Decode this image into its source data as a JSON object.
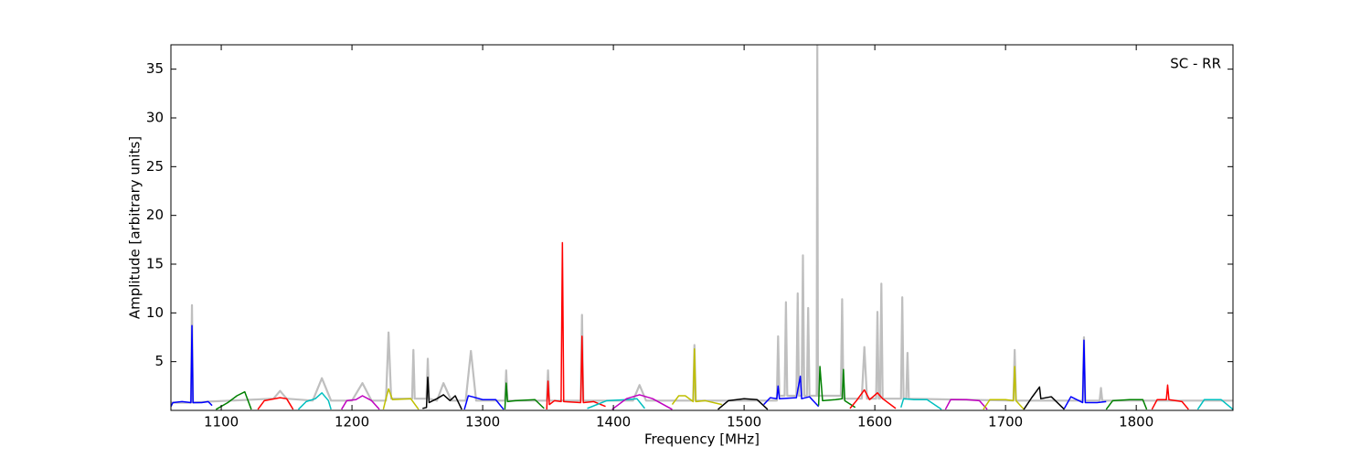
{
  "chart_data": {
    "type": "line",
    "xlabel": "Frequency [MHz]",
    "ylabel": "Amplitude [arbitrary units]",
    "annotation": "SC - RR",
    "xlim": [
      1061.5,
      1874
    ],
    "ylim": [
      0,
      37.5
    ],
    "xticks": [
      1100,
      1200,
      1300,
      1400,
      1500,
      1600,
      1700,
      1800
    ],
    "yticks": [
      5,
      10,
      15,
      20,
      25,
      30,
      35
    ],
    "series": [
      {
        "color": "#bfbfbf",
        "x": [
          1061.5,
          1076.8,
          1077.6,
          1078.4,
          1090,
          1140,
          1145,
          1150,
          1170,
          1177,
          1184,
          1200,
          1208,
          1215,
          1226,
          1228,
          1230,
          1246,
          1247,
          1248,
          1257,
          1258,
          1259,
          1265,
          1270,
          1276,
          1287,
          1291,
          1295,
          1317,
          1318,
          1319,
          1349,
          1350,
          1351,
          1375,
          1376,
          1377,
          1415,
          1420,
          1425,
          1461,
          1462,
          1463,
          1525,
          1526,
          1527,
          1531,
          1532,
          1533,
          1540,
          1541,
          1542,
          1544,
          1545,
          1546,
          1548,
          1549,
          1550,
          1555.5,
          1556,
          1556.5,
          1574,
          1575,
          1576,
          1590,
          1592,
          1594,
          1601,
          1602,
          1603,
          1604,
          1605,
          1606,
          1620,
          1621,
          1622,
          1624,
          1625,
          1626,
          1706,
          1707,
          1708,
          1759,
          1760,
          1761,
          1772,
          1773,
          1774,
          1874
        ],
        "values": [
          0.8,
          0.8,
          10.8,
          0.8,
          0.9,
          1.2,
          2,
          1.2,
          1,
          3.3,
          1,
          1,
          2.8,
          1,
          1,
          8,
          1.2,
          1.2,
          6.2,
          1.2,
          1.2,
          5.3,
          1.2,
          1,
          2.8,
          1,
          1,
          6.1,
          1,
          1,
          4.1,
          1,
          1,
          4.1,
          1,
          1,
          9.8,
          1,
          1,
          2.6,
          1,
          1,
          6.7,
          1,
          1,
          7.6,
          1.5,
          1.5,
          11.1,
          1.5,
          1.5,
          12,
          1.5,
          1.5,
          15.9,
          1.5,
          1.5,
          10.5,
          1.5,
          1.5,
          37.5,
          1.5,
          1.5,
          11.4,
          1.2,
          1.2,
          6.5,
          1.2,
          1.2,
          10.1,
          1.2,
          1.2,
          13,
          1.2,
          1.2,
          11.6,
          1.2,
          1.2,
          5.9,
          1.2,
          1,
          6.2,
          1,
          1,
          7.5,
          1,
          1,
          2.3,
          1,
          1
        ]
      },
      {
        "color": "#0000ff",
        "x": [
          1061.5,
          1063,
          1070,
          1076.8,
          1077.6,
          1078.4,
          1085,
          1090,
          1093
        ],
        "values": [
          0.4,
          0.8,
          0.9,
          0.8,
          8.7,
          0.8,
          0.8,
          0.9,
          0.5
        ]
      },
      {
        "color": "#008000",
        "x": [
          1096,
          1105,
          1112,
          1118,
          1123
        ],
        "values": [
          0.1,
          0.8,
          1.5,
          1.9,
          0.1
        ]
      },
      {
        "color": "#ff0000",
        "x": [
          1128,
          1133,
          1145,
          1150,
          1155
        ],
        "values": [
          0.1,
          1.0,
          1.3,
          1.2,
          0.1
        ]
      },
      {
        "color": "#00bfbf",
        "x": [
          1159,
          1165,
          1172,
          1177,
          1182,
          1184
        ],
        "values": [
          0.1,
          0.9,
          1.2,
          1.8,
          1.0,
          0.1
        ]
      },
      {
        "color": "#bf00bf",
        "x": [
          1192,
          1196,
          1203,
          1208,
          1215,
          1221
        ],
        "values": [
          0.1,
          1.0,
          1.1,
          1.5,
          1.0,
          0.1
        ]
      },
      {
        "color": "#bfbf00",
        "x": [
          1224,
          1226,
          1228,
          1231,
          1245,
          1251
        ],
        "values": [
          0.1,
          1.2,
          2.2,
          1.1,
          1.2,
          0.1
        ]
      },
      {
        "color": "#000000",
        "x": [
          1254,
          1257,
          1258,
          1259,
          1265,
          1270,
          1275,
          1279,
          1284
        ],
        "values": [
          0.2,
          0.3,
          3.4,
          0.8,
          1.2,
          1.6,
          1.0,
          1.5,
          0.1
        ]
      },
      {
        "color": "#0000ff",
        "x": [
          1286,
          1289,
          1292,
          1300,
          1310,
          1316
        ],
        "values": [
          0.1,
          1.5,
          1.4,
          1.1,
          1.1,
          0.1
        ]
      },
      {
        "color": "#008000",
        "x": [
          1317,
          1318,
          1319,
          1325,
          1340,
          1347
        ],
        "values": [
          0.1,
          2.8,
          0.9,
          1.0,
          1.1,
          0.2
        ]
      },
      {
        "color": "#ff0000",
        "x": [
          1349,
          1350,
          1351,
          1355,
          1360,
          1361,
          1362,
          1375,
          1376,
          1377,
          1385,
          1394
        ],
        "values": [
          0.1,
          3.0,
          0.6,
          1.0,
          0.9,
          17.2,
          0.9,
          0.8,
          7.6,
          0.8,
          0.9,
          0.4
        ]
      },
      {
        "color": "#00bfbf",
        "x": [
          1380,
          1395,
          1410,
          1418,
          1424
        ],
        "values": [
          0.2,
          1.0,
          1.1,
          1.2,
          0.2
        ]
      },
      {
        "color": "#bf00bf",
        "x": [
          1399,
          1410,
          1420,
          1430,
          1445
        ],
        "values": [
          0.1,
          1.2,
          1.6,
          1.2,
          0.1
        ]
      },
      {
        "color": "#bfbf00",
        "x": [
          1445,
          1450,
          1455,
          1461,
          1462,
          1463,
          1470,
          1483
        ],
        "values": [
          0.6,
          1.5,
          1.5,
          0.9,
          6.3,
          0.9,
          1.0,
          0.6
        ]
      },
      {
        "color": "#000000",
        "x": [
          1480,
          1488,
          1500,
          1510,
          1518
        ],
        "values": [
          0.1,
          1.0,
          1.2,
          1.1,
          0.1
        ]
      },
      {
        "color": "#0000ff",
        "x": [
          1515,
          1520,
          1525,
          1526,
          1527,
          1540,
          1543,
          1544,
          1550,
          1557
        ],
        "values": [
          0.6,
          1.3,
          1.2,
          2.5,
          1.2,
          1.3,
          3.5,
          1.2,
          1.4,
          0.4
        ]
      },
      {
        "color": "#008000",
        "x": [
          1557,
          1558,
          1560,
          1570,
          1575,
          1576,
          1577,
          1585
        ],
        "values": [
          0.5,
          4.5,
          1.0,
          1.1,
          1.2,
          4.2,
          1.0,
          0.3
        ]
      },
      {
        "color": "#ff0000",
        "x": [
          1581,
          1586,
          1592,
          1596,
          1602,
          1606,
          1616
        ],
        "values": [
          0.2,
          1.0,
          2.1,
          1.1,
          1.8,
          1.2,
          0.2
        ]
      },
      {
        "color": "#00bfbf",
        "x": [
          1620,
          1622,
          1630,
          1640,
          1651
        ],
        "values": [
          0.3,
          1.2,
          1.1,
          1.1,
          0.1
        ]
      },
      {
        "color": "#bf00bf",
        "x": [
          1654,
          1658,
          1670,
          1680,
          1686
        ],
        "values": [
          0.1,
          1.1,
          1.1,
          1.0,
          0.1
        ]
      },
      {
        "color": "#bfbf00",
        "x": [
          1683,
          1688,
          1700,
          1706,
          1707,
          1708,
          1714
        ],
        "values": [
          0.1,
          1.1,
          1.1,
          1.0,
          4.5,
          1.0,
          0.1
        ]
      },
      {
        "color": "#000000",
        "x": [
          1714,
          1720,
          1726,
          1727,
          1735,
          1745
        ],
        "values": [
          0.1,
          1.3,
          2.4,
          1.2,
          1.4,
          0.1
        ]
      },
      {
        "color": "#0000ff",
        "x": [
          1745,
          1750,
          1759,
          1760,
          1761,
          1770,
          1777
        ],
        "values": [
          0.2,
          1.4,
          0.8,
          7.2,
          0.8,
          0.8,
          0.9
        ]
      },
      {
        "color": "#008000",
        "x": [
          1777,
          1782,
          1795,
          1805,
          1808
        ],
        "values": [
          0.1,
          1.0,
          1.1,
          1.1,
          0.1
        ]
      },
      {
        "color": "#ff0000",
        "x": [
          1812,
          1816,
          1823,
          1824,
          1825,
          1835,
          1840
        ],
        "values": [
          0.1,
          1.1,
          1.1,
          2.6,
          1.1,
          0.9,
          0.1
        ]
      },
      {
        "color": "#00bfbf",
        "x": [
          1847,
          1852,
          1865,
          1874
        ],
        "values": [
          0.1,
          1.1,
          1.1,
          0.1
        ]
      }
    ]
  }
}
